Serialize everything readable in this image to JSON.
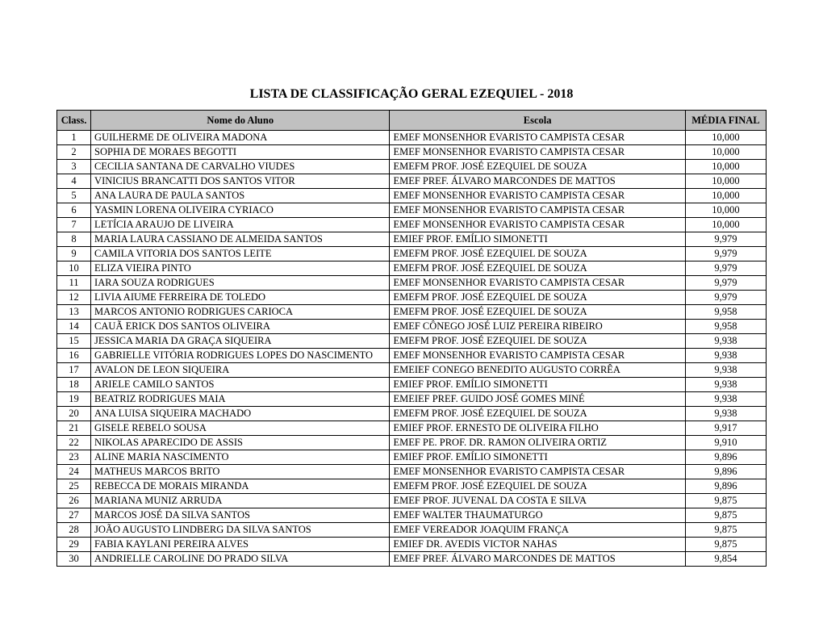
{
  "title": "LISTA DE CLASSIFICAÇÃO GERAL EZEQUIEL - 2018",
  "columns": {
    "class": "Class.",
    "name": "Nome do Aluno",
    "school": "Escola",
    "avg": "MÉDIA FINAL"
  },
  "rows": [
    {
      "class": "1",
      "name": "GUILHERME DE OLIVEIRA MADONA",
      "school": "EMEF MONSENHOR EVARISTO CAMPISTA CESAR",
      "avg": "10,000"
    },
    {
      "class": "2",
      "name": "SOPHIA DE MORAES BEGOTTI",
      "school": "EMEF MONSENHOR EVARISTO CAMPISTA CESAR",
      "avg": "10,000"
    },
    {
      "class": "3",
      "name": "CECILIA SANTANA DE CARVALHO VIUDES",
      "school": "EMEFM PROF. JOSÉ EZEQUIEL DE SOUZA",
      "avg": "10,000"
    },
    {
      "class": "4",
      "name": "VINICIUS BRANCATTI DOS SANTOS VITOR",
      "school": "EMEF PREF. ÁLVARO MARCONDES DE MATTOS",
      "avg": "10,000"
    },
    {
      "class": "5",
      "name": "ANA LAURA DE PAULA SANTOS",
      "school": "EMEF MONSENHOR EVARISTO CAMPISTA CESAR",
      "avg": "10,000"
    },
    {
      "class": "6",
      "name": "YASMIN LORENA OLIVEIRA CYRIACO",
      "school": "EMEF MONSENHOR EVARISTO CAMPISTA CESAR",
      "avg": "10,000"
    },
    {
      "class": "7",
      "name": "LETÍCIA ARAUJO DE LIVEIRA",
      "school": "EMEF MONSENHOR EVARISTO CAMPISTA CESAR",
      "avg": "10,000"
    },
    {
      "class": "8",
      "name": "MARIA LAURA CASSIANO DE ALMEIDA SANTOS",
      "school": "EMIEF PROF. EMÍLIO SIMONETTI",
      "avg": "9,979"
    },
    {
      "class": "9",
      "name": "CAMILA VITORIA DOS SANTOS LEITE",
      "school": "EMEFM PROF. JOSÉ EZEQUIEL DE SOUZA",
      "avg": "9,979"
    },
    {
      "class": "10",
      "name": "ELIZA VIEIRA PINTO",
      "school": "EMEFM PROF. JOSÉ EZEQUIEL DE SOUZA",
      "avg": "9,979"
    },
    {
      "class": "11",
      "name": "IARA SOUZA RODRIGUES",
      "school": "EMEF MONSENHOR EVARISTO CAMPISTA CESAR",
      "avg": "9,979"
    },
    {
      "class": "12",
      "name": "LIVIA AIUME FERREIRA DE TOLEDO",
      "school": "EMEFM PROF. JOSÉ EZEQUIEL DE SOUZA",
      "avg": "9,979"
    },
    {
      "class": "13",
      "name": "MARCOS ANTONIO RODRIGUES CARIOCA",
      "school": "EMEFM PROF. JOSÉ EZEQUIEL DE SOUZA",
      "avg": "9,958"
    },
    {
      "class": "14",
      "name": "CAUÃ ERICK DOS SANTOS OLIVEIRA",
      "school": "EMEF CÔNEGO JOSÉ LUIZ PEREIRA RIBEIRO",
      "avg": "9,958"
    },
    {
      "class": "15",
      "name": "JESSICA MARIA DA GRAÇA SIQUEIRA",
      "school": "EMEFM PROF. JOSÉ EZEQUIEL DE SOUZA",
      "avg": "9,938"
    },
    {
      "class": "16",
      "name": "GABRIELLE VITÓRIA RODRIGUES LOPES DO NASCIMENTO",
      "school": "EMEF MONSENHOR EVARISTO CAMPISTA CESAR",
      "avg": "9,938"
    },
    {
      "class": "17",
      "name": "AVALON DE LEON SIQUEIRA",
      "school": "EMEIEF CONEGO BENEDITO AUGUSTO CORRÊA",
      "avg": "9,938"
    },
    {
      "class": "18",
      "name": "ARIELE CAMILO SANTOS",
      "school": "EMIEF PROF. EMÍLIO SIMONETTI",
      "avg": "9,938"
    },
    {
      "class": "19",
      "name": "BEATRIZ RODRIGUES MAIA",
      "school": "EMEIEF PREF. GUIDO JOSÉ GOMES MINÉ",
      "avg": "9,938"
    },
    {
      "class": "20",
      "name": "ANA LUISA SIQUEIRA MACHADO",
      "school": "EMEFM PROF. JOSÉ EZEQUIEL DE SOUZA",
      "avg": "9,938"
    },
    {
      "class": "21",
      "name": "GISELE REBELO SOUSA",
      "school": "EMIEF PROF. ERNESTO DE OLIVEIRA FILHO",
      "avg": "9,917"
    },
    {
      "class": "22",
      "name": "NIKOLAS APARECIDO DE ASSIS",
      "school": "EMEF PE. PROF. DR. RAMON OLIVEIRA ORTIZ",
      "avg": "9,910"
    },
    {
      "class": "23",
      "name": "ALINE MARIA NASCIMENTO",
      "school": "EMIEF PROF. EMÍLIO SIMONETTI",
      "avg": "9,896"
    },
    {
      "class": "24",
      "name": "MATHEUS MARCOS BRITO",
      "school": "EMEF MONSENHOR EVARISTO CAMPISTA CESAR",
      "avg": "9,896"
    },
    {
      "class": "25",
      "name": "REBECCA DE MORAIS MIRANDA",
      "school": "EMEFM PROF. JOSÉ EZEQUIEL DE SOUZA",
      "avg": "9,896"
    },
    {
      "class": "26",
      "name": "MARIANA MUNIZ ARRUDA",
      "school": "EMEF PROF. JUVENAL DA COSTA E SILVA",
      "avg": "9,875"
    },
    {
      "class": "27",
      "name": "MARCOS JOSÉ DA SILVA SANTOS",
      "school": "EMEF WALTER THAUMATURGO",
      "avg": "9,875"
    },
    {
      "class": "28",
      "name": "JOÃO AUGUSTO LINDBERG DA SILVA SANTOS",
      "school": "EMEF VEREADOR JOAQUIM FRANÇA",
      "avg": "9,875"
    },
    {
      "class": "29",
      "name": "FABIA KAYLANI PEREIRA ALVES",
      "school": "EMIEF DR. AVEDIS VICTOR NAHAS",
      "avg": "9,875"
    },
    {
      "class": "30",
      "name": "ANDRIELLE CAROLINE DO PRADO SILVA",
      "school": "EMEF PREF. ÁLVARO MARCONDES DE MATTOS",
      "avg": "9,854"
    }
  ]
}
